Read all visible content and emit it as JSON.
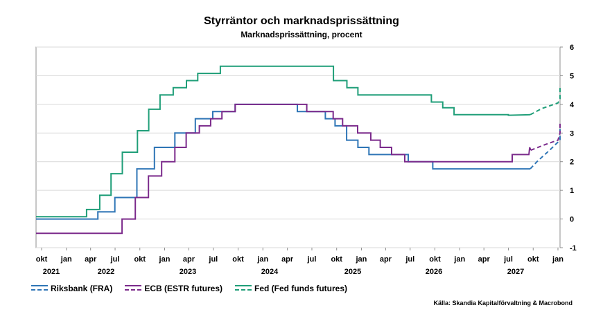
{
  "chart_data": {
    "type": "line",
    "title": "Styrräntor och marknadsprissättning",
    "subtitle": "Marknadsprissättning, procent",
    "source": "Källa: Skandia Kapitalförvaltning & Macrobond",
    "ylim": [
      -1,
      6
    ],
    "yticks": [
      "6",
      "5",
      "4",
      "3",
      "2",
      "1",
      "0",
      "-1"
    ],
    "xlim": [
      "2021-09-01",
      "2027-01-31"
    ],
    "xticks": [
      {
        "label": "okt",
        "date": "2021-10-01"
      },
      {
        "label": "jan",
        "date": "2022-01-01"
      },
      {
        "label": "apr",
        "date": "2022-04-01"
      },
      {
        "label": "jul",
        "date": "2022-07-01"
      },
      {
        "label": "okt",
        "date": "2022-10-01"
      },
      {
        "label": "jan",
        "date": "2023-01-01"
      },
      {
        "label": "apr",
        "date": "2023-04-01"
      },
      {
        "label": "jul",
        "date": "2023-07-01"
      },
      {
        "label": "okt",
        "date": "2023-10-01"
      },
      {
        "label": "jan",
        "date": "2024-01-01"
      },
      {
        "label": "apr",
        "date": "2024-04-01"
      },
      {
        "label": "jul",
        "date": "2024-07-01"
      },
      {
        "label": "okt",
        "date": "2024-10-01"
      },
      {
        "label": "jan",
        "date": "2025-01-01"
      },
      {
        "label": "apr",
        "date": "2025-04-01"
      },
      {
        "label": "jul",
        "date": "2025-07-01"
      },
      {
        "label": "okt",
        "date": "2025-10-01"
      },
      {
        "label": "jan",
        "date": "2026-01-01"
      },
      {
        "label": "apr",
        "date": "2026-04-01"
      },
      {
        "label": "jul",
        "date": "2026-07-01"
      },
      {
        "label": "okt",
        "date": "2026-10-01"
      },
      {
        "label": "jan",
        "date": "2027-01-01"
      }
    ],
    "year_labels": [
      {
        "label": "2021",
        "date": "2021-10-01"
      },
      {
        "label": "2022",
        "date": "2022-07-01"
      },
      {
        "label": "2023",
        "date": "2023-07-01"
      },
      {
        "label": "2024",
        "date": "2024-07-01"
      },
      {
        "label": "2025",
        "date": "2025-07-01"
      },
      {
        "label": "2026",
        "date": "2026-07-01"
      },
      {
        "label": "2027",
        "date": "2027-07-01"
      }
    ],
    "year_labels_display": [
      {
        "label": "2021",
        "date": "2021-10-15"
      },
      {
        "label": "2022",
        "date": "2022-07-01"
      },
      {
        "label": "2023",
        "date": "2023-07-01"
      },
      {
        "label": "2024",
        "date": "2024-07-01"
      },
      {
        "label": "2025",
        "date": "2025-07-01"
      },
      {
        "label": "2026",
        "date": "2026-07-01"
      },
      {
        "label": "2027",
        "date": "2027-07-01"
      }
    ],
    "series": [
      {
        "name": "Riksbank (FRA)",
        "color": "#2e75b6",
        "historical": [
          [
            "2021-09-01",
            0
          ],
          [
            "2022-04-28",
            0
          ],
          [
            "2022-04-28",
            0.25
          ],
          [
            "2022-06-30",
            0.25
          ],
          [
            "2022-06-30",
            0.75
          ],
          [
            "2022-09-20",
            0.75
          ],
          [
            "2022-09-20",
            1.75
          ],
          [
            "2022-11-24",
            1.75
          ],
          [
            "2022-11-24",
            2.5
          ],
          [
            "2023-02-08",
            2.5
          ],
          [
            "2023-02-08",
            3.0
          ],
          [
            "2023-04-25",
            3.0
          ],
          [
            "2023-04-25",
            3.5
          ],
          [
            "2023-06-29",
            3.5
          ],
          [
            "2023-06-29",
            3.75
          ],
          [
            "2023-09-20",
            3.75
          ],
          [
            "2023-09-20",
            4.0
          ],
          [
            "2024-05-08",
            4.0
          ],
          [
            "2024-05-08",
            3.75
          ],
          [
            "2024-08-20",
            3.75
          ],
          [
            "2024-08-20",
            3.5
          ],
          [
            "2024-09-25",
            3.5
          ],
          [
            "2024-09-25",
            3.25
          ],
          [
            "2024-11-07",
            3.25
          ],
          [
            "2024-11-07",
            2.75
          ],
          [
            "2024-12-19",
            2.75
          ],
          [
            "2024-12-19",
            2.5
          ],
          [
            "2025-01-29",
            2.5
          ],
          [
            "2025-01-29",
            2.25
          ],
          [
            "2025-06-24",
            2.25
          ],
          [
            "2025-06-24",
            2.0
          ],
          [
            "2025-09-23",
            2.0
          ],
          [
            "2025-09-23",
            1.75
          ],
          [
            "2026-09-20",
            1.75
          ]
        ],
        "forecast": [
          [
            "2026-09-20",
            1.75
          ],
          [
            "2026-10-15",
            2.0
          ],
          [
            "2026-12-01",
            2.4
          ],
          [
            "2027-02-01",
            2.75
          ],
          [
            "2027-04-01",
            2.95
          ],
          [
            "2027-06-01",
            3.1
          ],
          [
            "2027-08-01",
            3.2
          ],
          [
            "2027-10-01",
            3.25
          ],
          [
            "2028-01-01",
            3.25
          ]
        ]
      },
      {
        "name": "ECB (ESTR futures)",
        "color": "#7b2a8b",
        "historical": [
          [
            "2021-09-01",
            -0.5
          ],
          [
            "2022-07-27",
            -0.5
          ],
          [
            "2022-07-27",
            0.0
          ],
          [
            "2022-09-14",
            0.0
          ],
          [
            "2022-09-14",
            0.75
          ],
          [
            "2022-11-02",
            0.75
          ],
          [
            "2022-11-02",
            1.5
          ],
          [
            "2022-12-21",
            1.5
          ],
          [
            "2022-12-21",
            2.0
          ],
          [
            "2023-02-08",
            2.0
          ],
          [
            "2023-02-08",
            2.5
          ],
          [
            "2023-03-22",
            2.5
          ],
          [
            "2023-03-22",
            3.0
          ],
          [
            "2023-05-10",
            3.0
          ],
          [
            "2023-05-10",
            3.25
          ],
          [
            "2023-06-21",
            3.25
          ],
          [
            "2023-06-21",
            3.5
          ],
          [
            "2023-08-02",
            3.5
          ],
          [
            "2023-08-02",
            3.75
          ],
          [
            "2023-09-20",
            3.75
          ],
          [
            "2023-09-20",
            4.0
          ],
          [
            "2024-06-12",
            4.0
          ],
          [
            "2024-06-12",
            3.75
          ],
          [
            "2024-09-18",
            3.75
          ],
          [
            "2024-09-18",
            3.5
          ],
          [
            "2024-10-23",
            3.5
          ],
          [
            "2024-10-23",
            3.25
          ],
          [
            "2024-12-18",
            3.25
          ],
          [
            "2024-12-18",
            3.0
          ],
          [
            "2025-02-05",
            3.0
          ],
          [
            "2025-02-05",
            2.75
          ],
          [
            "2025-03-12",
            2.75
          ],
          [
            "2025-03-12",
            2.5
          ],
          [
            "2025-04-23",
            2.5
          ],
          [
            "2025-04-23",
            2.25
          ],
          [
            "2025-06-11",
            2.25
          ],
          [
            "2025-06-11",
            2.0
          ],
          [
            "2026-07-15",
            2.0
          ],
          [
            "2026-07-15",
            2.25
          ],
          [
            "2026-09-15",
            2.25
          ],
          [
            "2026-09-18",
            2.5
          ],
          [
            "2026-09-22",
            2.4
          ]
        ],
        "forecast": [
          [
            "2026-09-22",
            2.4
          ],
          [
            "2026-11-15",
            2.6
          ],
          [
            "2027-01-01",
            2.75
          ],
          [
            "2027-03-01",
            3.0
          ],
          [
            "2027-05-01",
            3.2
          ],
          [
            "2027-07-01",
            3.3
          ],
          [
            "2027-09-01",
            3.38
          ],
          [
            "2027-11-01",
            3.4
          ],
          [
            "2028-01-01",
            3.4
          ]
        ]
      },
      {
        "name": "Fed (Fed funds futures)",
        "color": "#1f9e78",
        "historical": [
          [
            "2021-09-01",
            0.08
          ],
          [
            "2022-03-17",
            0.08
          ],
          [
            "2022-03-17",
            0.33
          ],
          [
            "2022-05-05",
            0.33
          ],
          [
            "2022-05-05",
            0.83
          ],
          [
            "2022-06-16",
            0.83
          ],
          [
            "2022-06-16",
            1.58
          ],
          [
            "2022-07-28",
            1.58
          ],
          [
            "2022-07-28",
            2.33
          ],
          [
            "2022-09-22",
            2.33
          ],
          [
            "2022-09-22",
            3.08
          ],
          [
            "2022-11-03",
            3.08
          ],
          [
            "2022-11-03",
            3.83
          ],
          [
            "2022-12-15",
            3.83
          ],
          [
            "2022-12-15",
            4.33
          ],
          [
            "2023-02-02",
            4.33
          ],
          [
            "2023-02-02",
            4.58
          ],
          [
            "2023-03-23",
            4.58
          ],
          [
            "2023-03-23",
            4.83
          ],
          [
            "2023-05-04",
            4.83
          ],
          [
            "2023-05-04",
            5.08
          ],
          [
            "2023-07-27",
            5.08
          ],
          [
            "2023-07-27",
            5.33
          ],
          [
            "2024-09-19",
            5.33
          ],
          [
            "2024-09-19",
            4.83
          ],
          [
            "2024-11-08",
            4.83
          ],
          [
            "2024-11-08",
            4.58
          ],
          [
            "2024-12-19",
            4.58
          ],
          [
            "2024-12-19",
            4.33
          ],
          [
            "2025-09-18",
            4.33
          ],
          [
            "2025-09-18",
            4.08
          ],
          [
            "2025-10-30",
            4.08
          ],
          [
            "2025-10-30",
            3.88
          ],
          [
            "2025-12-11",
            3.88
          ],
          [
            "2025-12-11",
            3.64
          ],
          [
            "2026-07-01",
            3.64
          ],
          [
            "2026-07-01",
            3.62
          ],
          [
            "2026-09-20",
            3.64
          ]
        ],
        "forecast": [
          [
            "2026-09-20",
            3.64
          ],
          [
            "2026-11-01",
            3.85
          ],
          [
            "2027-01-01",
            4.05
          ],
          [
            "2027-03-01",
            4.2
          ],
          [
            "2027-05-01",
            4.35
          ],
          [
            "2027-07-01",
            4.47
          ],
          [
            "2027-09-01",
            4.54
          ],
          [
            "2027-11-01",
            4.58
          ],
          [
            "2028-01-01",
            4.58
          ]
        ]
      }
    ],
    "legend_position": "bottom-left",
    "grid": true
  }
}
